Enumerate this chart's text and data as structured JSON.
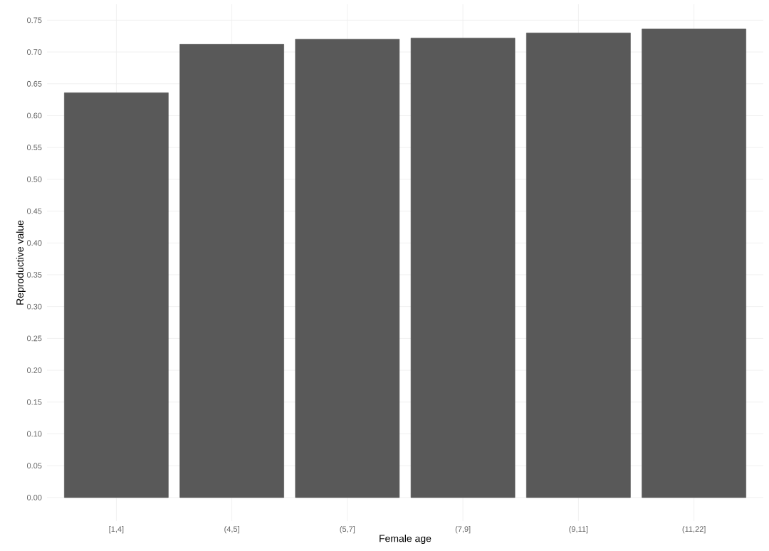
{
  "chart_data": {
    "type": "bar",
    "xlabel": "Female age",
    "ylabel": "Reproductive value",
    "categories": [
      "[1,4]",
      "(4,5]",
      "(5,7]",
      "(7,9]",
      "(9,11]",
      "(11,22]"
    ],
    "values": [
      0.636,
      0.712,
      0.72,
      0.722,
      0.73,
      0.736
    ],
    "color": "#595959",
    "ylim": [
      -0.037,
      0.775
    ],
    "yticks": [
      {
        "value": 0,
        "label": "0.00"
      },
      {
        "value": 0.05,
        "label": "0.05"
      },
      {
        "value": 0.1,
        "label": "0.10"
      },
      {
        "value": 0.15,
        "label": "0.15"
      },
      {
        "value": 0.2,
        "label": "0.20"
      },
      {
        "value": 0.25,
        "label": "0.25"
      },
      {
        "value": 0.3,
        "label": "0.30"
      },
      {
        "value": 0.35,
        "label": "0.35"
      },
      {
        "value": 0.4,
        "label": "0.40"
      },
      {
        "value": 0.45,
        "label": "0.45"
      },
      {
        "value": 0.5,
        "label": "0.50"
      },
      {
        "value": 0.55,
        "label": "0.55"
      },
      {
        "value": 0.6,
        "label": "0.60"
      },
      {
        "value": 0.65,
        "label": "0.65"
      },
      {
        "value": 0.7,
        "label": "0.70"
      },
      {
        "value": 0.75,
        "label": "0.75"
      }
    ],
    "grid": true
  }
}
